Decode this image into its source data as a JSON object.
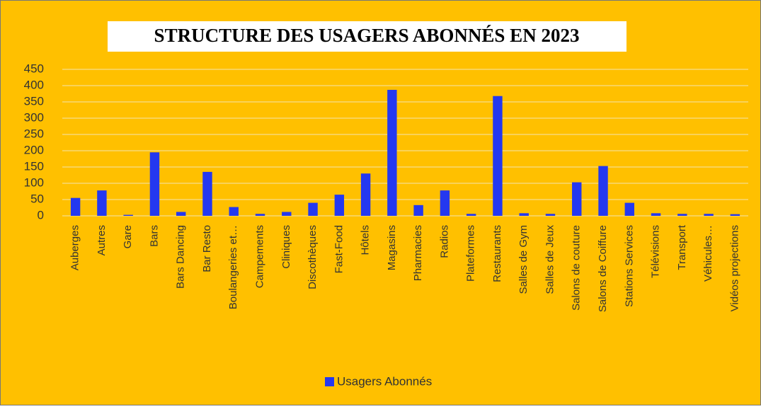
{
  "chart_data": {
    "type": "bar",
    "title": "STRUCTURE DES USAGERS ABONNÉS EN 2023",
    "categories": [
      "Auberges",
      "Autres",
      "Gare",
      "Bars",
      "Bars Dancing",
      "Bar Resto",
      "Boulangeries et…",
      "Campements",
      "Cliniques",
      "Discothèques",
      "Fast-Food",
      "Hôtels",
      "Magasins",
      "Pharmacies",
      "Radios",
      "Plateformes",
      "Restaurants",
      "Salles de Gym",
      "Salles de Jeux",
      "Salons de couture",
      "Salons de Coiffure",
      "Stations Services",
      "Télévisions",
      "Transport",
      "Véhicules…",
      "Vidéos projections"
    ],
    "series": [
      {
        "name": "Usagers Abonnés",
        "color": "#2438f0",
        "values": [
          55,
          78,
          3,
          195,
          12,
          135,
          27,
          6,
          12,
          40,
          65,
          130,
          387,
          33,
          78,
          6,
          368,
          8,
          6,
          103,
          153,
          40,
          8,
          6,
          6,
          5
        ]
      }
    ],
    "ylim": [
      0,
      450
    ],
    "yticks": [
      0,
      50,
      100,
      150,
      200,
      250,
      300,
      350,
      400,
      450
    ],
    "grid": true,
    "legend": "bottom"
  }
}
